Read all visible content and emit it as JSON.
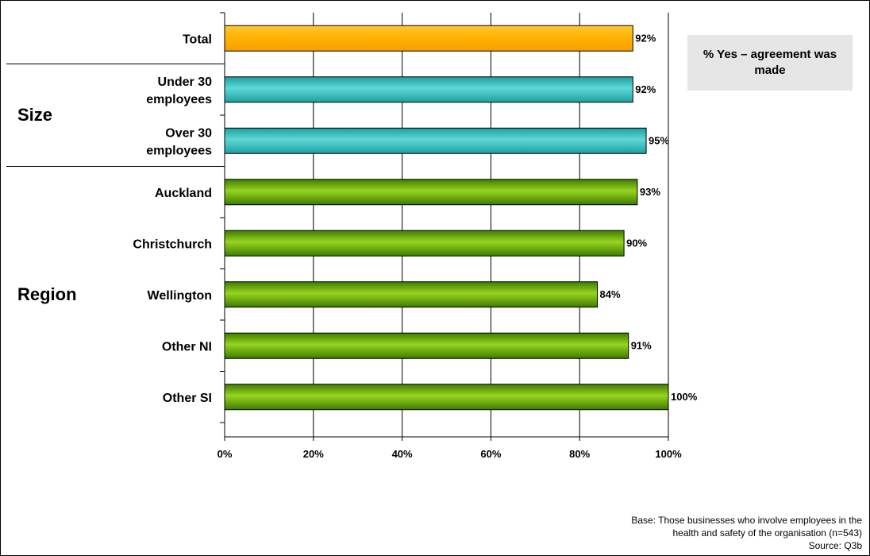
{
  "chart_data": {
    "type": "bar",
    "orientation": "horizontal",
    "categories": [
      "Total",
      "Under 30\nemployees",
      "Over 30\nemployees",
      "Auckland",
      "Christchurch",
      "Wellington",
      "Other NI",
      "Other SI"
    ],
    "groups": [
      {
        "label": "",
        "members": [
          "Total"
        ]
      },
      {
        "label": "Size",
        "members": [
          "Under 30\nemployees",
          "Over 30\nemployees"
        ]
      },
      {
        "label": "Region",
        "members": [
          "Auckland",
          "Christchurch",
          "Wellington",
          "Other NI",
          "Other SI"
        ]
      }
    ],
    "values": [
      92,
      92,
      95,
      93,
      90,
      84,
      91,
      100
    ],
    "value_labels": [
      "92%",
      "92%",
      "95%",
      "93%",
      "90%",
      "84%",
      "91%",
      "100%"
    ],
    "x_ticks": [
      0,
      20,
      40,
      60,
      80,
      100
    ],
    "x_tick_labels": [
      "0%",
      "20%",
      "40%",
      "60%",
      "80%",
      "100%"
    ],
    "xlim": [
      0,
      100
    ],
    "grid": true,
    "legend_text": "% Yes – agreement was made",
    "legend_position": "top-right",
    "colors": {
      "total": "#ffb000",
      "size": "#2fb8b8",
      "region": "#6aaa0e"
    }
  },
  "footnote": {
    "line1": "Base: Those businesses who involve employees in the",
    "line2": "health and safety of the organisation (n=543)",
    "line3": "Source: Q3b"
  }
}
